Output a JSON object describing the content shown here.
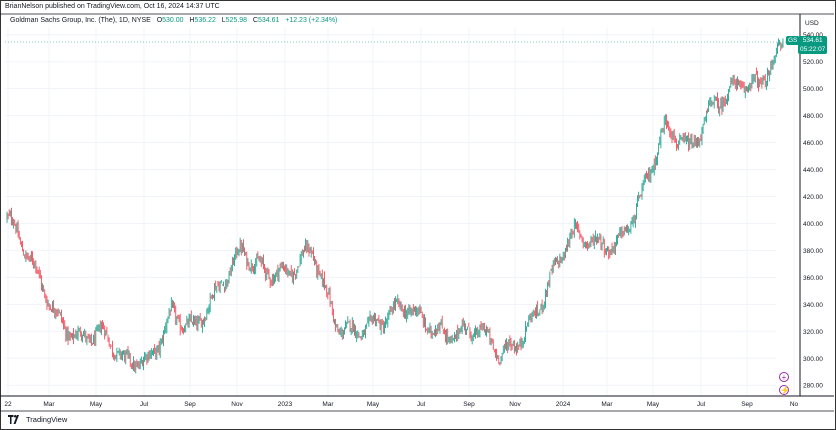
{
  "header": {
    "text": "BrianNelson published on TradingView.com, Oct 16, 2024 14:37 UTC"
  },
  "legend": {
    "symbol_name": "Goldman Sachs Group, Inc. (The), 1D, NYSE",
    "open_label": "O",
    "open": "530.00",
    "high_label": "H",
    "high": "536.22",
    "low_label": "L",
    "low": "525.98",
    "close_label": "C",
    "close": "534.61",
    "change": "+12.23 (+2.34%)"
  },
  "price_axis": {
    "currency": "USD",
    "ticks": [
      "280.00",
      "300.00",
      "320.00",
      "340.00",
      "360.00",
      "380.00",
      "400.00",
      "420.00",
      "440.00",
      "460.00",
      "480.00",
      "500.00",
      "520.00",
      "540.00"
    ]
  },
  "time_axis": {
    "ticks": [
      "22",
      "Mar",
      "May",
      "Jul",
      "Sep",
      "Nov",
      "2023",
      "Mar",
      "May",
      "Jul",
      "Sep",
      "Nov",
      "2024",
      "Mar",
      "May",
      "Jul",
      "Sep",
      "No"
    ]
  },
  "last_price_badge": {
    "ticker": "GS",
    "price": "534.61",
    "countdown": "05:22:07"
  },
  "footer": {
    "brand": "TradingView"
  },
  "colors": {
    "up": "#089981",
    "down": "#f23645",
    "grid": "#f0f3fa",
    "axis_text": "#131722",
    "badge_bg": "#089981",
    "event_icon": "#9c27b0"
  },
  "icons": {
    "event_top": "plus-circle-icon",
    "event_bottom": "lightning-circle-icon"
  },
  "chart_data": {
    "type": "candlestick",
    "title": "Goldman Sachs Group, Inc. (The), 1D, NYSE",
    "x_range": [
      "2022-01",
      "2024-10"
    ],
    "ylim": [
      272,
      545
    ],
    "y_scale": "linear",
    "grid": true,
    "series": [
      {
        "name": "GS",
        "x": [
          "2022-01",
          "2022-02",
          "2022-03",
          "2022-04",
          "2022-05",
          "2022-06",
          "2022-07",
          "2022-08",
          "2022-09",
          "2022-10",
          "2022-11",
          "2022-12",
          "2023-01",
          "2023-02",
          "2023-03",
          "2023-04",
          "2023-05",
          "2023-06",
          "2023-07",
          "2023-08",
          "2023-09",
          "2023-10",
          "2023-11",
          "2023-12",
          "2024-01",
          "2024-02",
          "2024-03",
          "2024-04",
          "2024-05",
          "2024-06",
          "2024-07",
          "2024-08",
          "2024-09",
          "2024-10"
        ],
        "values": [
          405,
          365,
          335,
          322,
          318,
          290,
          300,
          340,
          318,
          345,
          385,
          370,
          358,
          375,
          330,
          325,
          322,
          335,
          330,
          320,
          315,
          300,
          325,
          355,
          385,
          385,
          392,
          420,
          465,
          455,
          495,
          500,
          495,
          534.61
        ]
      }
    ]
  }
}
